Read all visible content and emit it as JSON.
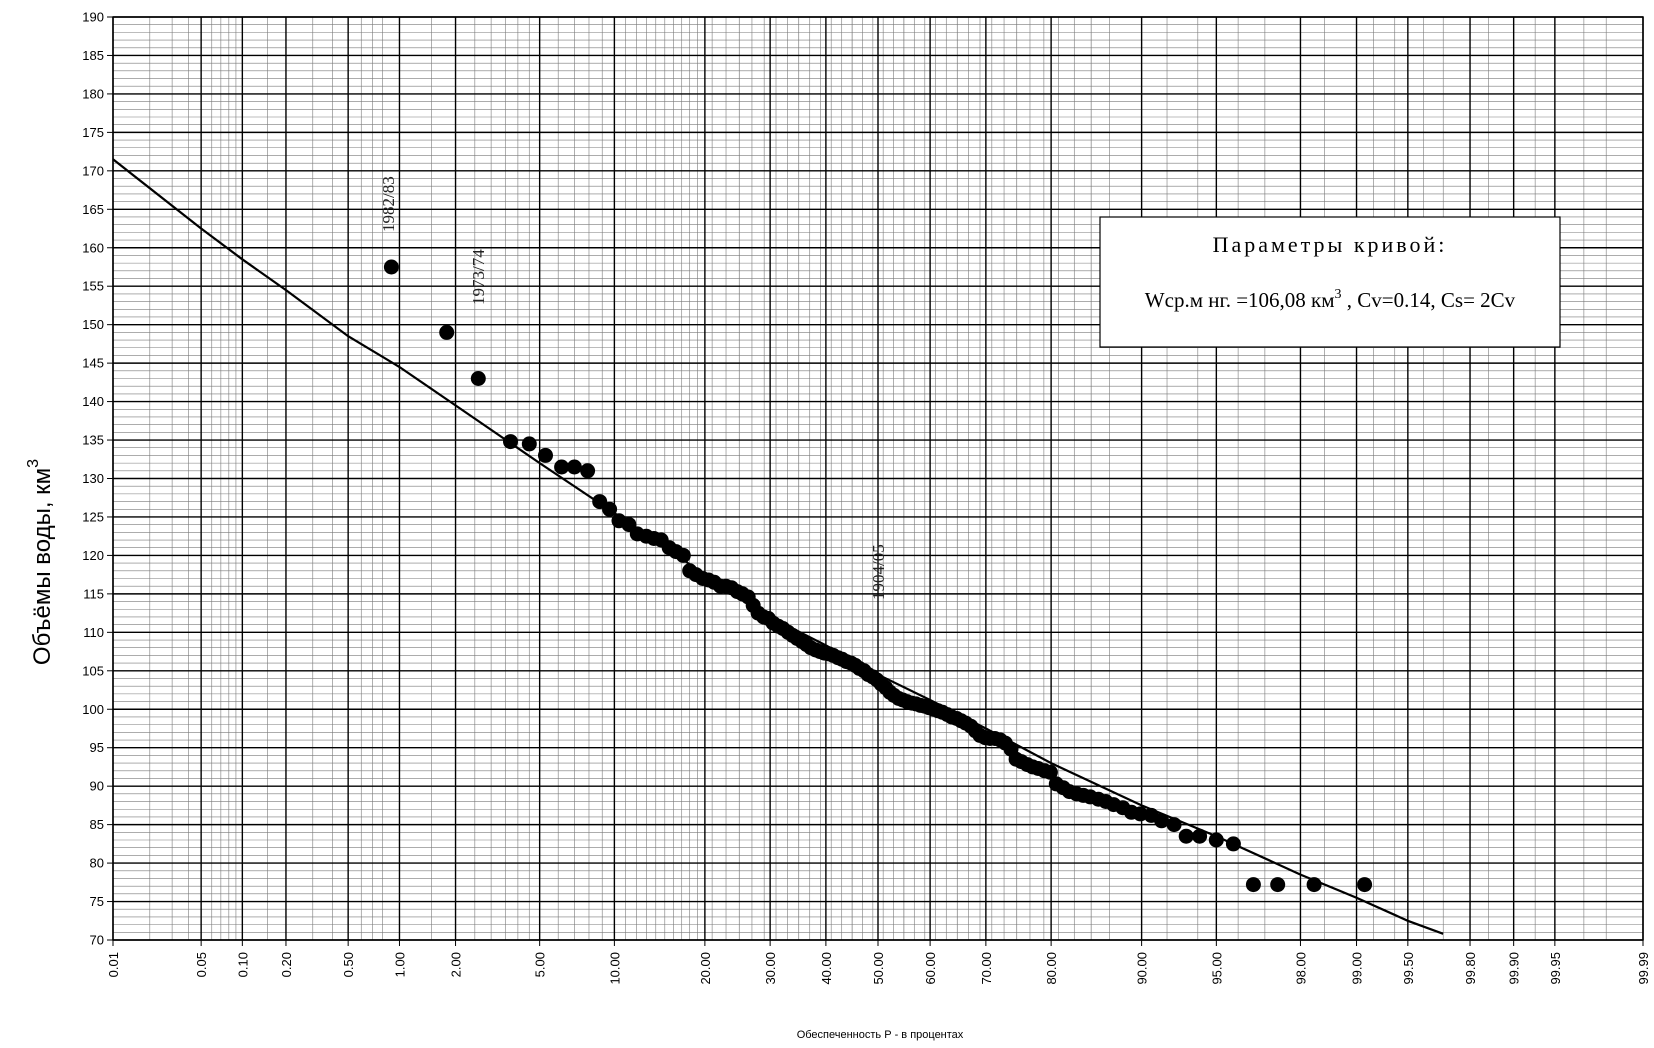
{
  "chart_data": {
    "type": "scatter",
    "x_scale": "probability",
    "title": "",
    "xlabel": "Обеспеченность Р - в процентах",
    "ylabel": "Объёмы воды, км",
    "ylabel_superscript": "3",
    "ylim": [
      70,
      190
    ],
    "y_ticks": [
      70,
      75,
      80,
      85,
      90,
      95,
      100,
      105,
      110,
      115,
      120,
      125,
      130,
      135,
      140,
      145,
      150,
      155,
      160,
      165,
      170,
      175,
      180,
      185,
      190
    ],
    "x_ticks": [
      0.01,
      0.05,
      0.1,
      0.2,
      0.5,
      1.0,
      2.0,
      5.0,
      10.0,
      20.0,
      30.0,
      40.0,
      50.0,
      60.0,
      70.0,
      80.0,
      90.0,
      95.0,
      98.0,
      99.0,
      99.5,
      99.8,
      99.9,
      99.95,
      99.99
    ],
    "x_tick_labels": [
      "0.01",
      "0.05",
      "0.10",
      "0.20",
      "0.50",
      "1.00",
      "2.00",
      "5.00",
      "10.00",
      "20.00",
      "30.00",
      "40.00",
      "50.00",
      "60.00",
      "70.00",
      "80.00",
      "90.00",
      "95.00",
      "98.00",
      "99.00",
      "99.50",
      "99.80",
      "99.90",
      "99.95",
      "99.99"
    ],
    "grid": true,
    "curve": {
      "p": [
        0.01,
        0.05,
        0.1,
        0.2,
        0.5,
        1.0,
        2.0,
        5.0,
        10.0,
        20.0,
        30.0,
        40.0,
        50.0,
        60.0,
        70.0,
        80.0,
        90.0,
        95.0,
        98.0,
        99.0,
        99.5,
        99.7
      ],
      "v": [
        171.5,
        162.5,
        158.5,
        154.5,
        148.5,
        144.5,
        139.5,
        132.0,
        125.5,
        117.5,
        112.0,
        108.3,
        104.5,
        101.2,
        97.5,
        93.0,
        87.5,
        83.5,
        78.5,
        75.5,
        72.5,
        70.8
      ]
    },
    "points": {
      "p": [
        0.9,
        1.8,
        2.6,
        3.7,
        4.5,
        5.3,
        6.2,
        7.0,
        7.9,
        8.8,
        9.6,
        10.4,
        11.3,
        12.1,
        13.0,
        13.8,
        14.6,
        15.5,
        16.3,
        17.2,
        18.0,
        18.8,
        19.7,
        20.5,
        21.3,
        22.2,
        23.0,
        23.8,
        24.7,
        25.5,
        26.4,
        27.2,
        28.0,
        28.9,
        29.7,
        30.5,
        31.4,
        32.2,
        33.1,
        33.9,
        34.7,
        35.6,
        36.4,
        37.2,
        38.1,
        38.9,
        39.7,
        40.6,
        41.4,
        42.3,
        43.1,
        43.9,
        44.8,
        45.6,
        46.4,
        47.3,
        48.1,
        49.0,
        49.8,
        50.6,
        51.5,
        52.3,
        53.1,
        54.0,
        54.8,
        55.6,
        56.5,
        57.3,
        58.2,
        59.0,
        59.8,
        60.7,
        61.5,
        62.3,
        63.2,
        64.0,
        64.9,
        65.7,
        66.5,
        67.4,
        68.2,
        69.0,
        69.9,
        70.7,
        71.5,
        72.4,
        73.2,
        74.1,
        74.9,
        75.7,
        76.6,
        77.4,
        78.2,
        79.1,
        79.9,
        80.7,
        81.6,
        82.4,
        83.3,
        84.1,
        84.9,
        85.8,
        86.6,
        87.4,
        88.3,
        89.1,
        89.9,
        90.8,
        91.6,
        92.5,
        93.3,
        94.1,
        95.0,
        95.8,
        96.6,
        97.4,
        98.3,
        99.1
      ],
      "v": [
        157.5,
        149.0,
        143.0,
        134.8,
        134.5,
        133.0,
        131.5,
        131.5,
        131.0,
        127.0,
        126.0,
        124.5,
        124.0,
        122.8,
        122.5,
        122.2,
        122.0,
        121.0,
        120.5,
        120.0,
        118.0,
        117.5,
        117.0,
        116.8,
        116.5,
        116.0,
        116.0,
        115.8,
        115.3,
        115.0,
        114.6,
        113.5,
        112.5,
        112.0,
        111.8,
        111.2,
        110.8,
        110.5,
        110.0,
        109.6,
        109.2,
        108.8,
        108.4,
        108.0,
        107.7,
        107.5,
        107.3,
        107.2,
        107.0,
        106.7,
        106.5,
        106.2,
        106.0,
        105.7,
        105.3,
        105.0,
        104.5,
        104.2,
        103.8,
        103.3,
        102.8,
        102.2,
        101.8,
        101.4,
        101.2,
        101.0,
        100.8,
        100.7,
        100.5,
        100.4,
        100.2,
        100.0,
        99.8,
        99.6,
        99.3,
        99.0,
        98.8,
        98.5,
        98.2,
        97.8,
        97.2,
        96.6,
        96.3,
        96.2,
        96.2,
        96.0,
        95.6,
        94.8,
        93.5,
        93.2,
        92.8,
        92.5,
        92.3,
        92.0,
        91.8,
        90.3,
        89.8,
        89.3,
        89.0,
        88.8,
        88.6,
        88.3,
        88.0,
        87.6,
        87.2,
        86.6,
        86.4,
        86.2,
        85.5,
        85.0,
        83.5,
        83.5,
        83.0,
        82.5,
        77.2,
        77.2,
        77.2,
        77.2
      ]
    },
    "annotations": [
      "1982/83",
      "1973/74",
      "1904/05"
    ],
    "legend_box": {
      "title": "Параметры кривой:",
      "line_main": "Wср.м нг. =106,08 км",
      "line_sup": "3",
      "line_rest": " ,  Cv=0.14, Cs= 2Cv"
    }
  }
}
